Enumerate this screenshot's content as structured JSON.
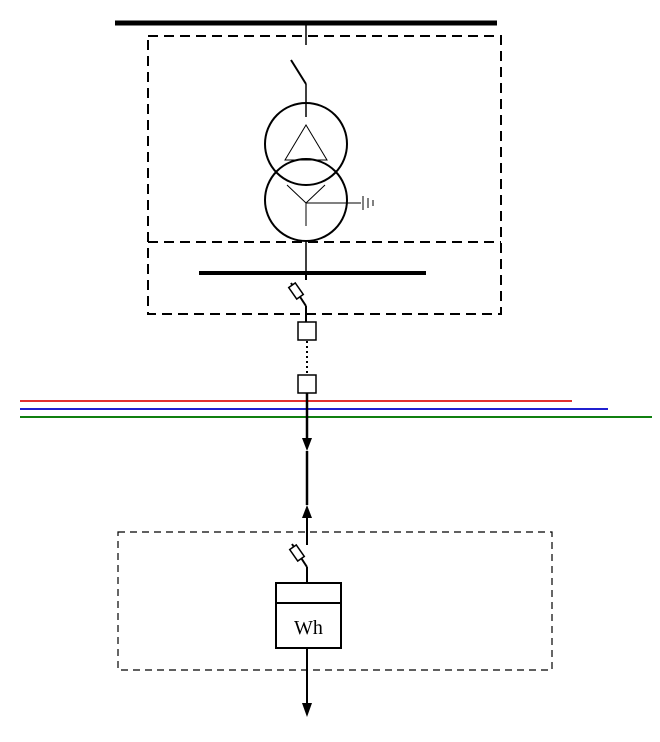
{
  "meter": {
    "label": "Wh"
  },
  "colors": {
    "line": "#000000",
    "phase_l1": "#e03030",
    "phase_l2": "#2020d0",
    "phase_l3": "#108010"
  }
}
